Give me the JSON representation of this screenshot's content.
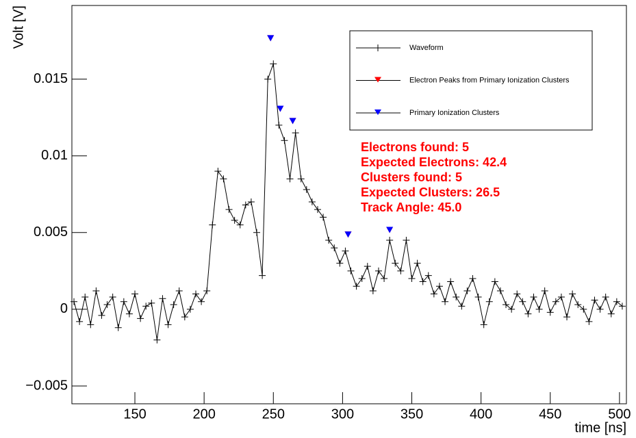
{
  "chart_data": {
    "type": "line",
    "xlabel": "time [ns]",
    "ylabel": "Volt [V]",
    "xlim": [
      104.5,
      505
    ],
    "ylim": [
      -0.00616,
      0.0198
    ],
    "xticks": [
      150,
      200,
      250,
      300,
      350,
      400,
      450,
      500
    ],
    "yticks": [
      {
        "value": -0.005,
        "label": "−0.005"
      },
      0,
      0.005,
      0.01,
      0.015
    ],
    "legend": "upper right",
    "annotation_color": "#ff0000",
    "annotations": [
      "Electrons found: 5",
      "Expected Electrons: 42.4",
      "Clusters found: 5",
      "Expected Clusters: 26.5",
      "Track Angle: 45.0"
    ],
    "series": [
      {
        "name": "Waveform",
        "color": "#000000",
        "marker": "cross",
        "x": [
          106,
          110,
          114,
          118,
          122,
          126,
          130,
          134,
          138,
          142,
          146,
          150,
          154,
          158,
          162,
          166,
          170,
          174,
          178,
          182,
          186,
          190,
          194,
          198,
          202,
          206,
          210,
          214,
          218,
          222,
          226,
          230,
          234,
          238,
          242,
          246,
          250,
          254,
          258,
          262,
          266,
          270,
          274,
          278,
          282,
          286,
          290,
          294,
          298,
          302,
          306,
          310,
          314,
          318,
          322,
          326,
          330,
          334,
          338,
          342,
          346,
          350,
          354,
          358,
          362,
          366,
          370,
          374,
          378,
          382,
          386,
          390,
          394,
          398,
          402,
          406,
          410,
          414,
          418,
          422,
          426,
          430,
          434,
          438,
          442,
          446,
          450,
          454,
          458,
          462,
          466,
          470,
          474,
          478,
          482,
          486,
          490,
          494,
          498,
          502
        ],
        "values": [
          0.0005,
          -0.0008,
          0.0008,
          -0.001,
          0.0012,
          -0.0004,
          0.0003,
          0.0008,
          -0.0012,
          0.0005,
          -0.0003,
          0.001,
          -0.0006,
          0.0002,
          0.0004,
          -0.002,
          0.0007,
          -0.001,
          0.0003,
          0.0012,
          -0.0005,
          0.0,
          0.001,
          0.0005,
          0.0012,
          0.0055,
          0.009,
          0.0085,
          0.0065,
          0.0058,
          0.0055,
          0.0068,
          0.007,
          0.005,
          0.0022,
          0.015,
          0.016,
          0.012,
          0.011,
          0.0085,
          0.0115,
          0.0085,
          0.0078,
          0.007,
          0.0065,
          0.006,
          0.0045,
          0.004,
          0.003,
          0.0038,
          0.0025,
          0.0015,
          0.002,
          0.0028,
          0.0012,
          0.0025,
          0.002,
          0.0045,
          0.003,
          0.0025,
          0.0045,
          0.002,
          0.003,
          0.0018,
          0.0022,
          0.001,
          0.0015,
          0.0005,
          0.0018,
          0.0008,
          0.0002,
          0.0012,
          0.002,
          0.0008,
          -0.001,
          0.0005,
          0.0018,
          0.0012,
          0.0003,
          0.0,
          0.001,
          0.0005,
          -0.0003,
          0.0008,
          0.0,
          0.0012,
          -0.0002,
          0.0005,
          0.0008,
          -0.0005,
          0.001,
          0.0003,
          0.0,
          -0.0008,
          0.0006,
          0.0,
          0.0008,
          -0.0003,
          0.0005,
          0.0002
        ]
      },
      {
        "name": "Electron Peaks from Primary Ionization Clusters",
        "color": "#ff0000",
        "marker": "triangle-down",
        "x": [
          248,
          255,
          264,
          304,
          334
        ],
        "values": [
          0.0176,
          0.013,
          0.0122,
          0.0048,
          0.0051
        ]
      },
      {
        "name": "Primary Ionization Clusters",
        "color": "#0000ff",
        "marker": "triangle-down",
        "x": [
          248,
          255,
          264,
          304,
          334
        ],
        "values": [
          0.0176,
          0.013,
          0.0122,
          0.0048,
          0.0051
        ]
      }
    ]
  }
}
